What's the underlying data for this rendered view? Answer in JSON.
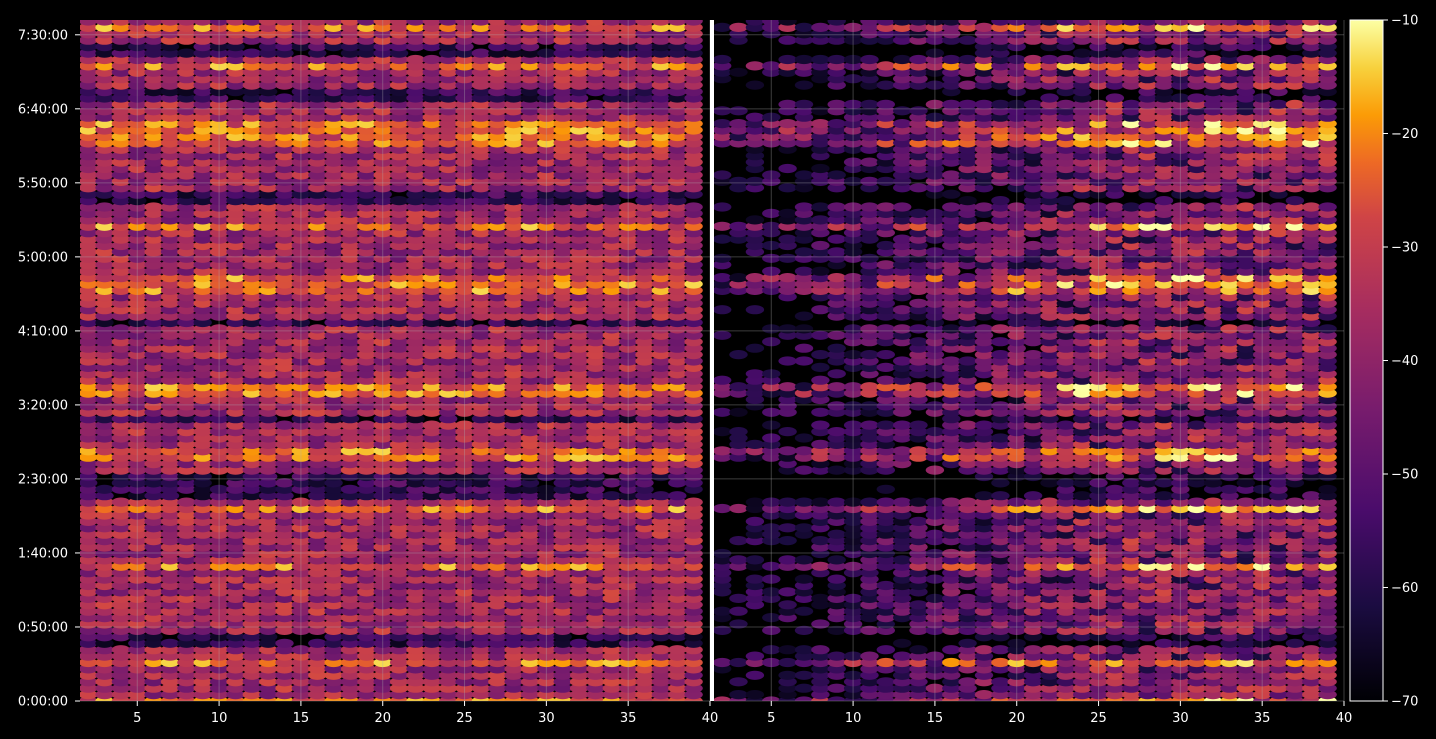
{
  "chart_data": [
    {
      "type": "heatmap",
      "panel": "left",
      "x_ticks": [
        "5",
        "10",
        "15",
        "20",
        "25",
        "30",
        "35",
        "40"
      ],
      "x_tick_values": [
        5,
        10,
        15,
        20,
        25,
        30,
        35,
        40
      ],
      "xlim": [
        1.5,
        40
      ],
      "y_ticks": [
        "0:00:00",
        "0:50:00",
        "1:40:00",
        "2:30:00",
        "3:20:00",
        "4:10:00",
        "5:00:00",
        "5:50:00",
        "6:40:00",
        "7:30:00"
      ],
      "y_tick_seconds": [
        0,
        3000,
        6000,
        9000,
        12000,
        15000,
        18000,
        21000,
        24000,
        27000
      ],
      "ylim_seconds": [
        0,
        27600
      ],
      "grid": true,
      "colormap": "inferno",
      "value_range": [
        -70,
        -10
      ],
      "strong_rows_seconds": [
        0,
        1500,
        5400,
        7800,
        10000,
        12600,
        16800,
        17000,
        19200,
        22800,
        23300,
        25800,
        27300
      ],
      "weak_rows_seconds": [
        2500,
        8400,
        9000,
        11500,
        15300,
        20400,
        24600,
        26400
      ]
    },
    {
      "type": "heatmap",
      "panel": "right",
      "x_ticks": [
        "5",
        "10",
        "15",
        "20",
        "25",
        "30",
        "35",
        "40"
      ],
      "x_tick_values": [
        5,
        10,
        15,
        20,
        25,
        30,
        35,
        40
      ],
      "xlim": [
        1.5,
        40
      ],
      "grid": true,
      "colormap": "inferno",
      "value_range": [
        -70,
        -10
      ]
    }
  ],
  "colorbar": {
    "ticks": [
      "−10",
      "−20",
      "−30",
      "−40",
      "−50",
      "−60",
      "−70"
    ],
    "tick_values": [
      -10,
      -20,
      -30,
      -40,
      -50,
      -60,
      -70
    ],
    "range": [
      -70,
      -10
    ]
  },
  "colors": {
    "background": "#000000",
    "text": "#ffffff",
    "grid": "#b0b0b0"
  }
}
